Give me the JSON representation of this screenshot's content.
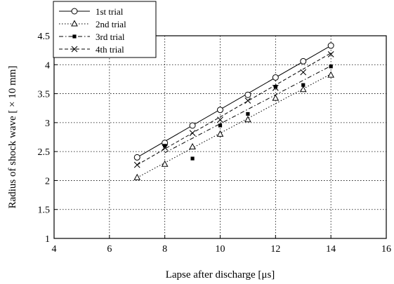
{
  "chart_data": {
    "type": "scatter",
    "xlabel": "Lapse after discharge [μs]",
    "ylabel": "Radius of shock wave [ × 10 mm]",
    "xlim": [
      4,
      16
    ],
    "ylim": [
      1,
      4.5
    ],
    "xticks": [
      4,
      6,
      8,
      10,
      12,
      14,
      16
    ],
    "yticks": [
      1,
      1.5,
      2,
      2.5,
      3,
      3.5,
      4,
      4.5
    ],
    "xtick_labels": [
      "4",
      "6",
      "8",
      "10",
      "12",
      "14",
      "16"
    ],
    "ytick_labels": [
      "1",
      "1.5",
      "2",
      "2.5",
      "3",
      "3.5",
      "4",
      "4.5"
    ],
    "grid": true,
    "legend_position": "top-left",
    "series": [
      {
        "name": "1st trial",
        "marker": "circle",
        "line_style": "solid",
        "x": [
          7,
          8,
          9,
          10,
          11,
          12,
          13,
          14
        ],
        "y": [
          2.4,
          2.65,
          2.95,
          3.22,
          3.48,
          3.78,
          4.06,
          4.33
        ],
        "fit": [
          [
            7,
            2.4
          ],
          [
            14,
            4.33
          ]
        ]
      },
      {
        "name": "2nd trial",
        "marker": "triangle",
        "line_style": "dotted",
        "x": [
          7,
          8,
          9,
          10,
          11,
          12,
          13,
          14
        ],
        "y": [
          2.05,
          2.28,
          2.58,
          2.8,
          3.05,
          3.42,
          3.57,
          3.82
        ],
        "fit": [
          [
            7,
            2.05
          ],
          [
            14,
            3.84
          ]
        ]
      },
      {
        "name": "3rd trial",
        "marker": "square",
        "line_style": "dashdot",
        "x": [
          8,
          9,
          10,
          11,
          12,
          13,
          14
        ],
        "y": [
          2.6,
          2.38,
          2.95,
          3.15,
          3.62,
          3.65,
          3.97
        ],
        "fit": [
          [
            8,
            2.48
          ],
          [
            14,
            3.98
          ]
        ]
      },
      {
        "name": "4th trial",
        "marker": "cross",
        "line_style": "dashed",
        "x": [
          7,
          8,
          9,
          10,
          11,
          12,
          13,
          14
        ],
        "y": [
          2.27,
          2.57,
          2.82,
          3.05,
          3.38,
          3.6,
          3.87,
          4.18
        ],
        "fit": [
          [
            7,
            2.27
          ],
          [
            14,
            4.2
          ]
        ]
      }
    ]
  }
}
